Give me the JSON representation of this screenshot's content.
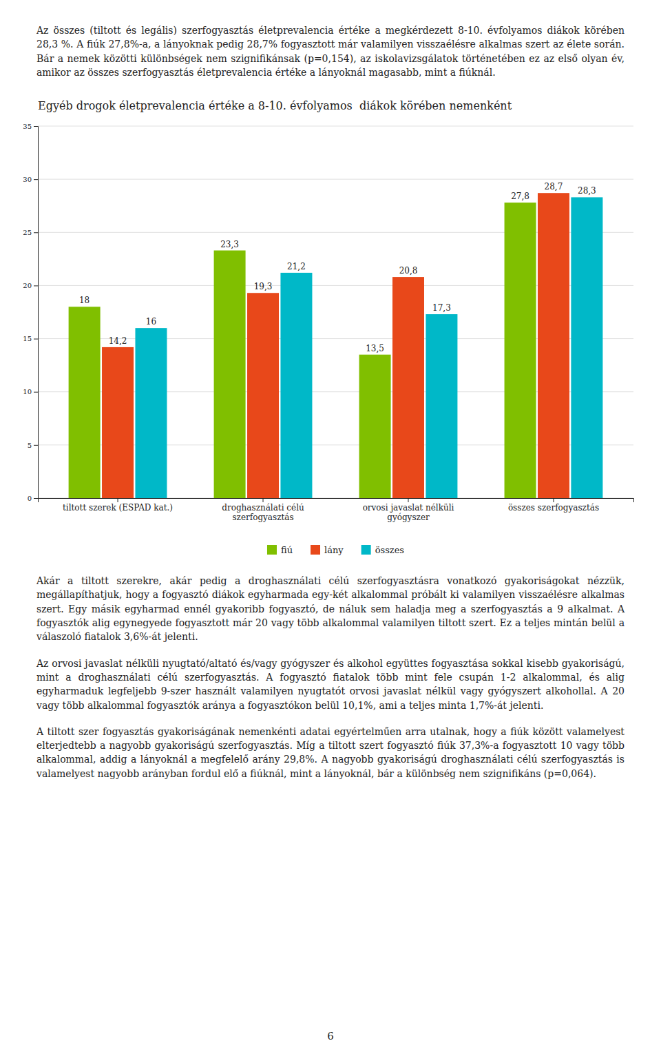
{
  "chart_data": {
    "type": "bar",
    "title": "Egyéb drogok életprevalencia értéke a 8-10. évfolyamos  diákok körében nemenként",
    "categories": [
      "tiltott szerek (ESPAD kat.)",
      "droghasználati célú\nszerfogyasztás",
      "orvosi javaslat nélküli\ngyógyszer",
      "összes szerfogyasztás"
    ],
    "series": [
      {
        "name": "fiú",
        "color": "#80BF00",
        "values": [
          18.0,
          23.3,
          13.5,
          27.8
        ],
        "value_labels": [
          "18",
          "23,3",
          "13,5",
          "27,8"
        ]
      },
      {
        "name": "lány",
        "color": "#E8481A",
        "values": [
          14.2,
          19.3,
          20.8,
          28.7
        ],
        "value_labels": [
          "14,2",
          "19,3",
          "20,8",
          "28,7"
        ]
      },
      {
        "name": "összes",
        "color": "#00B8C8",
        "values": [
          16.0,
          21.2,
          17.3,
          28.3
        ],
        "value_labels": [
          "16",
          "21,2",
          "17,3",
          "28,3"
        ]
      }
    ],
    "ylim": [
      0,
      35
    ],
    "yticks": [
      0,
      5,
      10,
      15,
      20,
      25,
      30,
      35
    ],
    "grid": true,
    "legend": "bottom",
    "data_labels": true,
    "annotations": [
      "Az összes (tiltott és legális) szerfogyasztás életprevalencia értéke a megkérdezett 8-10. évfolyamos diákok körében 28,3 %. A fiúk 27,8%-a, a lányoknak pedig 28,7% fogyasztott már valamilyen visszaélésre alkalmas szert az élete során. Bár a nemek közötti különbségek nem szignifikánsak (p=0,154), az iskolavizsgálatok történetében ez az első olyan év, amikor az összes szerfogyasztás életprevalencia értéke a lányoknál magasabb, mint a fiúknál.",
      "Akár a tiltott szerekre, akár pedig a droghasználati célú szerfogyasztásra vonatkozó gyakoriságokat nézzük, megállapíthatjuk, hogy a fogyasztó diákok egyharmada egy-két alkalommal próbált ki valamilyen visszaélésre alkalmas szert. Egy másik egyharmad ennél gyakoribb fogyasztó, de náluk sem haladja meg a szerfogyasztás a 9 alkalmat. A fogyasztók alig egynegyede fogyasztott már 20 vagy több alkalommal valamilyen tiltott szert. Ez a teljes mintán belül a válaszoló fiatalok 3,6%-át jelenti.",
      "Az orvosi javaslat nélküli nyugtató/altató és/vagy gyógyszer és alkohol együttes fogyasztása sokkal kisebb gyakoriságú, mint a droghasználati célú szerfogyasztás. A fogyasztó fiatalok több mint fele csupán 1-2 alkalommal, és alig egyharmaduk legfeljebb 9-szer használt valamilyen nyugtatót orvosi javaslat nélkül vagy gyógyszert alkohollal. A 20 vagy több alkalommal fogyasztók aránya a fogyasztókon belül 10,1%, ami a teljes minta 1,7%-át jelenti.",
      "A tiltott szer fogyasztás gyakoriságának nemenkénti adatai egyértelműen arra utalnak, hogy a fiúk között valamelyest elterjedtebb a nagyobb gyakoriságú szerfogyasztás. Míg a tiltott szert fogyasztó fiúk 37,3%-a fogyasztott 10 vagy több alkalommal, addig a lányoknál a megfelelő arány 29,8%. A nagyobb gyakoriságú droghasználati célú szerfogyasztás is valamelyest nagyobb arányban fordul elő a fiúknál, mint a lányoknál, bár a különbség nem szignifikáns (p=0,064).",
      "6"
    ]
  }
}
